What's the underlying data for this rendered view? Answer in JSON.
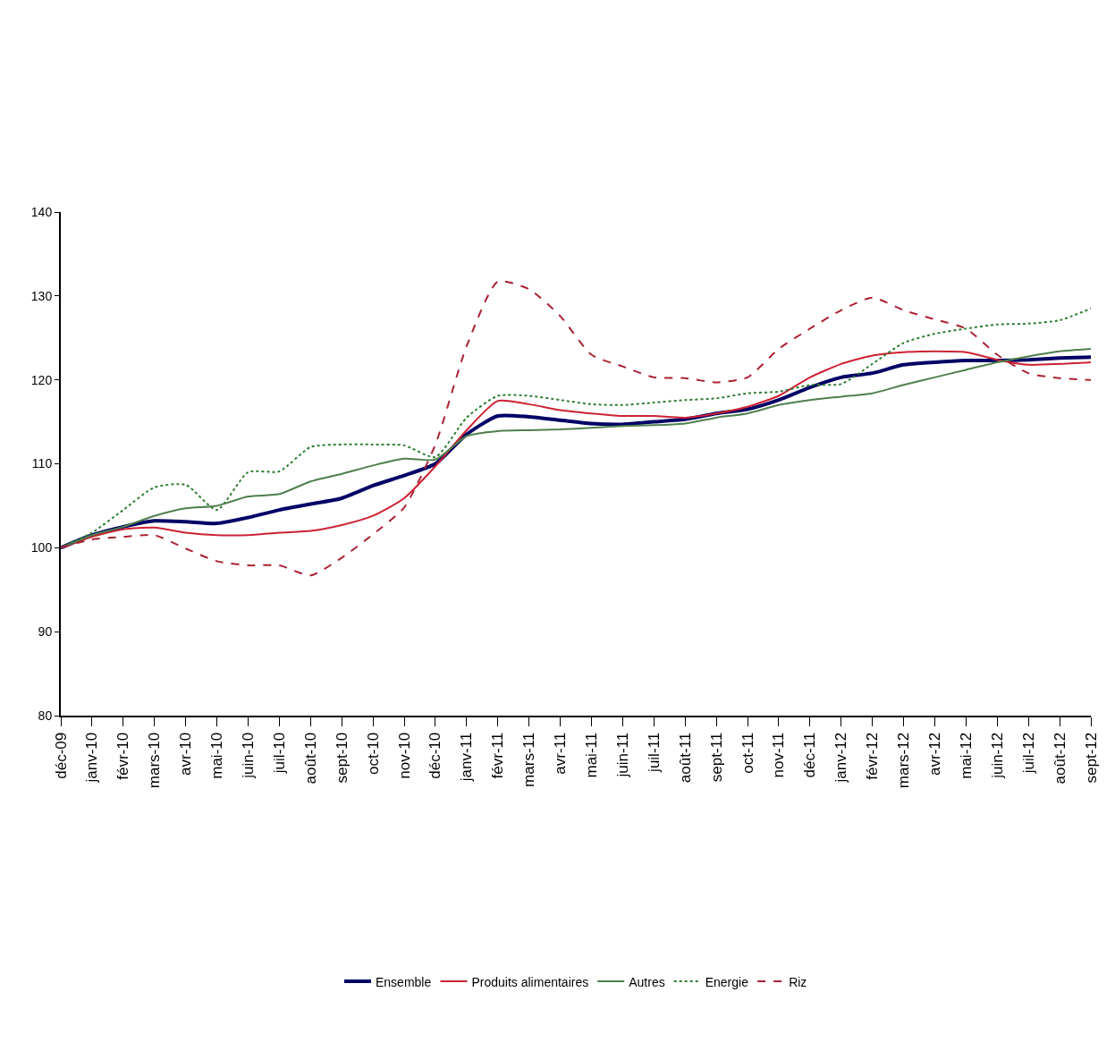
{
  "chart_data": {
    "type": "line",
    "categories": [
      "déc-09",
      "janv-10",
      "févr-10",
      "mars-10",
      "avr-10",
      "mai-10",
      "juin-10",
      "juil-10",
      "août-10",
      "sept-10",
      "oct-10",
      "nov-10",
      "déc-10",
      "janv-11",
      "févr-11",
      "mars-11",
      "avr-11",
      "mai-11",
      "juin-11",
      "juil-11",
      "août-11",
      "sept-11",
      "oct-11",
      "nov-11",
      "déc-11",
      "janv-12",
      "févr-12",
      "mars-12",
      "avr-12",
      "mai-12",
      "juin-12",
      "juil-12",
      "août-12",
      "sept-12"
    ],
    "series": [
      {
        "name": "Ensemble",
        "color": "#000066",
        "line_style": "solid",
        "values": [
          100,
          101.5,
          102.5,
          103.2,
          103.1,
          102.9,
          103.6,
          104.5,
          105.2,
          105.9,
          107.4,
          108.6,
          110,
          113.5,
          115.7,
          115.6,
          115.2,
          114.8,
          114.7,
          115,
          115.3,
          116,
          116.5,
          117.6,
          119.1,
          120.3,
          120.8,
          121.8,
          122.1,
          122.3,
          122.3,
          122.4,
          122.6,
          122.7
        ]
      },
      {
        "name": "Produits alimentaires",
        "color": "#cc2233",
        "line_style": "solid",
        "values": [
          100,
          101.3,
          102.2,
          102.4,
          101.8,
          101.5,
          101.5,
          101.8,
          102,
          102.7,
          103.8,
          105.9,
          109.7,
          114,
          117.5,
          117.1,
          116.4,
          116,
          115.7,
          115.7,
          115.5,
          116,
          116.8,
          118.1,
          120.3,
          121.9,
          122.9,
          123.3,
          123.4,
          123.3,
          122.4,
          121.8,
          121.9,
          122.1
        ]
      },
      {
        "name": "Autres",
        "color": "#4f7f4f",
        "line_style": "solid",
        "values": [
          100,
          101.5,
          102.5,
          103.8,
          104.7,
          105,
          106.1,
          106.4,
          107.9,
          108.8,
          109.8,
          110.6,
          110.5,
          113.3,
          113.9,
          114,
          114.1,
          114.3,
          114.5,
          114.6,
          114.8,
          115.5,
          116,
          117,
          117.6,
          118,
          118.4,
          119.4,
          120.3,
          121.2,
          122.1,
          122.8,
          123.4,
          123.7
        ]
      },
      {
        "name": "Energie",
        "color": "#2e7d32",
        "line_style": "dotted",
        "values": [
          100,
          101.8,
          104.5,
          107.2,
          107.5,
          104.5,
          109,
          109.1,
          112,
          112.3,
          112.3,
          112.2,
          110.8,
          115.5,
          118.1,
          118.1,
          117.6,
          117.1,
          117,
          117.3,
          117.6,
          117.8,
          118.4,
          118.6,
          119.4,
          119.5,
          121.9,
          124.4,
          125.5,
          126.1,
          126.6,
          126.7,
          127.1,
          128.5
        ]
      },
      {
        "name": "Riz",
        "color": "#aa2233",
        "line_style": "dashed",
        "values": [
          100,
          101,
          101.3,
          101.5,
          99.9,
          98.4,
          97.9,
          97.9,
          96.7,
          98.8,
          101.6,
          104.8,
          112.3,
          124,
          131.7,
          130.8,
          127.6,
          123,
          121.6,
          120.3,
          120.2,
          119.7,
          120.3,
          123.7,
          126.1,
          128.3,
          129.8,
          128.3,
          127.2,
          126.1,
          123,
          120.8,
          120.2,
          120
        ]
      }
    ],
    "ylim": [
      80,
      140
    ],
    "yticks": [
      80,
      90,
      100,
      110,
      120,
      130,
      140
    ],
    "legend": "bottom",
    "marker": "none"
  }
}
